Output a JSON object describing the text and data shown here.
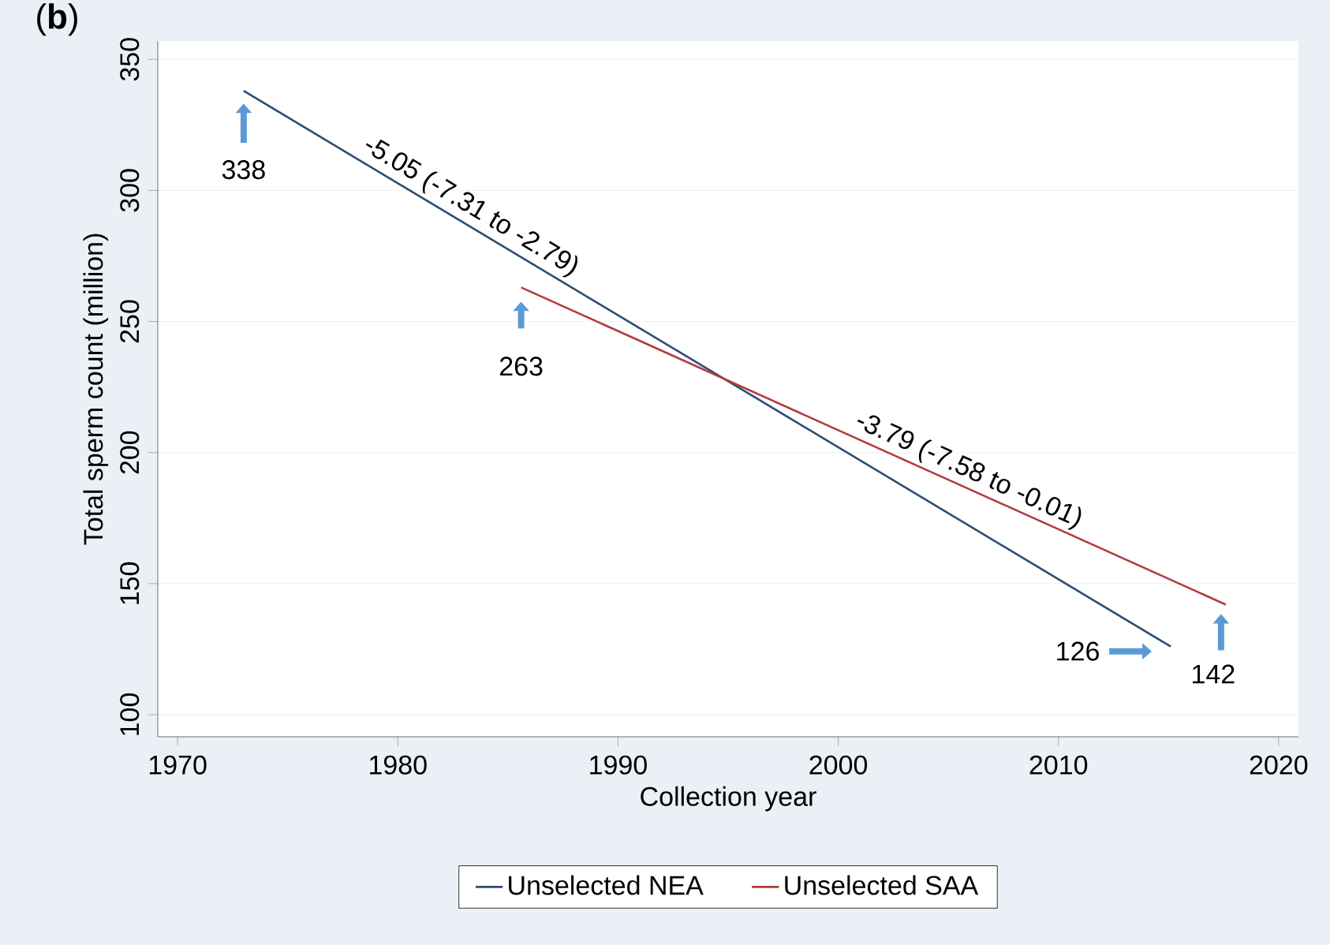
{
  "chart_data": {
    "type": "line",
    "title": "(**b**)",
    "xlabel": "Collection year",
    "ylabel": "Total sperm count (million)",
    "series": [
      {
        "name": "Unselected NEA",
        "color": "#2b4c74",
        "x": [
          1973,
          2015.1
        ],
        "values": [
          338,
          126
        ]
      },
      {
        "name": "Unselected SAA",
        "color": "#b23b3f",
        "x": [
          1985.6,
          2017.6
        ],
        "values": [
          263,
          142
        ]
      }
    ],
    "annotations": [
      {
        "text": "-5.05 (-7.31 to -2.79)",
        "x": 1982.9,
        "y": 288
      },
      {
        "text": "-3.79 (-7.58 to -0.01)",
        "x": 2005.6,
        "y": 187
      },
      {
        "text": "338",
        "x": 1973,
        "y": 338
      },
      {
        "text": "263",
        "x": 1985.6,
        "y": 263
      },
      {
        "text": "126",
        "x": 2015.1,
        "y": 126
      },
      {
        "text": "142",
        "x": 2017.6,
        "y": 142
      }
    ],
    "xlim": [
      1969.1,
      2020.9
    ],
    "ylim": [
      91.6,
      357
    ],
    "xticks": [
      1970,
      1980,
      1990,
      2000,
      2010,
      2020
    ],
    "yticks": [
      100,
      150,
      200,
      250,
      300,
      350
    ],
    "grid": "y",
    "legend": "bottom",
    "marker": "none",
    "line_style": "solid"
  }
}
